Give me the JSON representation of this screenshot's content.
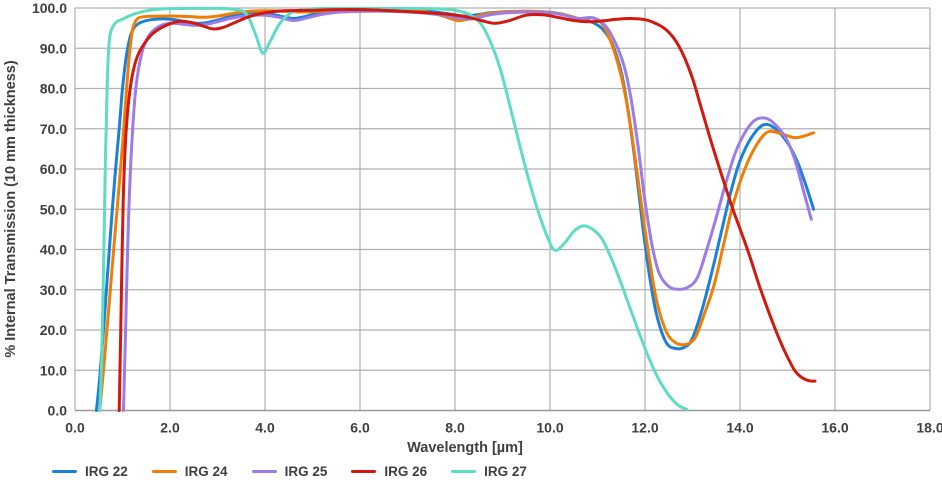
{
  "figure": {
    "background": "#ffffff",
    "text_color": "#3f3f40",
    "grid_color": "#b0b0b0",
    "axis_line_color": "#9a9a9a"
  },
  "chart_data": {
    "type": "line",
    "title": "",
    "xlabel": "Wavelength [µm]",
    "ylabel": "% Internal Transmission (10 mm thickness)",
    "xlim": [
      0,
      18
    ],
    "ylim": [
      0,
      100
    ],
    "x_ticks": [
      "0.0",
      "2.0",
      "4.0",
      "6.0",
      "8.0",
      "10.0",
      "12.0",
      "14.0",
      "16.0",
      "18.0"
    ],
    "y_ticks": [
      "0.0",
      "10.0",
      "20.0",
      "30.0",
      "40.0",
      "50.0",
      "60.0",
      "70.0",
      "80.0",
      "90.0",
      "100.0"
    ],
    "grid": true,
    "legend_position": "bottom-left",
    "line_width": 3,
    "draw_order": [
      "IRG 22",
      "IRG 24",
      "IRG 25",
      "IRG 27",
      "IRG 26"
    ],
    "series": [
      {
        "name": "IRG 22",
        "color": "#1a80d8",
        "points": [
          [
            0.45,
            0
          ],
          [
            0.52,
            8
          ],
          [
            0.6,
            20
          ],
          [
            0.68,
            33
          ],
          [
            0.76,
            46
          ],
          [
            0.84,
            58
          ],
          [
            0.93,
            70
          ],
          [
            1.0,
            80
          ],
          [
            1.08,
            88
          ],
          [
            1.16,
            92.8
          ],
          [
            1.25,
            95.2
          ],
          [
            1.38,
            96.4
          ],
          [
            1.6,
            97.1
          ],
          [
            1.85,
            97.3
          ],
          [
            2.1,
            97.1
          ],
          [
            2.35,
            96.5
          ],
          [
            2.55,
            96.2
          ],
          [
            2.75,
            96.3
          ],
          [
            3.0,
            97.0
          ],
          [
            3.3,
            98.0
          ],
          [
            3.6,
            98.6
          ],
          [
            3.9,
            98.7
          ],
          [
            4.15,
            98.4
          ],
          [
            4.4,
            97.8
          ],
          [
            4.6,
            97.4
          ],
          [
            4.85,
            97.9
          ],
          [
            5.1,
            98.7
          ],
          [
            5.4,
            99.3
          ],
          [
            5.8,
            99.7
          ],
          [
            6.3,
            99.8
          ],
          [
            6.8,
            99.7
          ],
          [
            7.3,
            99.3
          ],
          [
            7.7,
            98.8
          ],
          [
            8.0,
            98.3
          ],
          [
            8.2,
            98.0
          ],
          [
            8.45,
            98.3
          ],
          [
            8.75,
            98.8
          ],
          [
            9.1,
            99.1
          ],
          [
            9.5,
            99.1
          ],
          [
            9.9,
            99.0
          ],
          [
            10.2,
            98.6
          ],
          [
            10.5,
            97.7
          ],
          [
            10.7,
            97.1
          ],
          [
            10.9,
            96.4
          ],
          [
            11.1,
            94.8
          ],
          [
            11.3,
            91.3
          ],
          [
            11.5,
            84.0
          ],
          [
            11.65,
            74.0
          ],
          [
            11.8,
            61.0
          ],
          [
            11.95,
            46.0
          ],
          [
            12.1,
            33.0
          ],
          [
            12.25,
            23.5
          ],
          [
            12.45,
            16.8
          ],
          [
            12.65,
            15.4
          ],
          [
            12.85,
            15.8
          ],
          [
            13.0,
            18.0
          ],
          [
            13.2,
            25.0
          ],
          [
            13.4,
            34.0
          ],
          [
            13.6,
            44.0
          ],
          [
            13.8,
            54.0
          ],
          [
            14.0,
            62.0
          ],
          [
            14.25,
            68.0
          ],
          [
            14.5,
            71.0
          ],
          [
            14.75,
            70.0
          ],
          [
            15.0,
            66.5
          ],
          [
            15.2,
            62.0
          ],
          [
            15.4,
            55.5
          ],
          [
            15.55,
            50.0
          ]
        ]
      },
      {
        "name": "IRG 24",
        "color": "#f07d05",
        "points": [
          [
            0.52,
            0
          ],
          [
            0.6,
            10
          ],
          [
            0.7,
            24
          ],
          [
            0.8,
            38
          ],
          [
            0.9,
            52
          ],
          [
            1.0,
            66
          ],
          [
            1.08,
            79
          ],
          [
            1.15,
            89
          ],
          [
            1.22,
            95.0
          ],
          [
            1.32,
            97.4
          ],
          [
            1.5,
            97.9
          ],
          [
            1.8,
            98.0
          ],
          [
            2.1,
            98.0
          ],
          [
            2.4,
            97.9
          ],
          [
            2.7,
            97.7
          ],
          [
            3.0,
            98.0
          ],
          [
            3.3,
            98.6
          ],
          [
            3.6,
            99.1
          ],
          [
            4.0,
            99.3
          ],
          [
            4.4,
            99.2
          ],
          [
            4.8,
            99.0
          ],
          [
            5.2,
            99.2
          ],
          [
            5.7,
            99.5
          ],
          [
            6.3,
            99.6
          ],
          [
            6.9,
            99.4
          ],
          [
            7.4,
            99.0
          ],
          [
            7.75,
            98.0
          ],
          [
            8.05,
            96.9
          ],
          [
            8.3,
            97.3
          ],
          [
            8.6,
            98.4
          ],
          [
            9.0,
            99.0
          ],
          [
            9.4,
            99.2
          ],
          [
            9.8,
            99.1
          ],
          [
            10.2,
            98.6
          ],
          [
            10.45,
            97.9
          ],
          [
            10.65,
            97.3
          ],
          [
            10.9,
            97.5
          ],
          [
            11.1,
            96.0
          ],
          [
            11.3,
            91.0
          ],
          [
            11.5,
            83.0
          ],
          [
            11.65,
            74.0
          ],
          [
            11.8,
            62.0
          ],
          [
            11.95,
            49.0
          ],
          [
            12.1,
            37.0
          ],
          [
            12.25,
            27.0
          ],
          [
            12.45,
            19.5
          ],
          [
            12.65,
            16.8
          ],
          [
            12.85,
            16.4
          ],
          [
            13.05,
            18.0
          ],
          [
            13.25,
            24.0
          ],
          [
            13.45,
            31.0
          ],
          [
            13.65,
            41.0
          ],
          [
            13.85,
            51.0
          ],
          [
            14.1,
            60.0
          ],
          [
            14.35,
            66.0
          ],
          [
            14.6,
            69.3
          ],
          [
            14.9,
            68.6
          ],
          [
            15.15,
            67.8
          ],
          [
            15.35,
            68.2
          ],
          [
            15.55,
            69.0
          ]
        ]
      },
      {
        "name": "IRG 25",
        "color": "#9b7ce8",
        "points": [
          [
            1.02,
            0
          ],
          [
            1.07,
            22
          ],
          [
            1.12,
            45
          ],
          [
            1.19,
            65
          ],
          [
            1.28,
            80
          ],
          [
            1.4,
            88.5
          ],
          [
            1.55,
            93.0
          ],
          [
            1.75,
            95.3
          ],
          [
            2.0,
            96.2
          ],
          [
            2.25,
            96.0
          ],
          [
            2.5,
            95.7
          ],
          [
            2.75,
            95.9
          ],
          [
            3.0,
            96.6
          ],
          [
            3.3,
            97.5
          ],
          [
            3.65,
            98.1
          ],
          [
            4.0,
            98.2
          ],
          [
            4.3,
            97.7
          ],
          [
            4.6,
            96.9
          ],
          [
            4.9,
            97.6
          ],
          [
            5.2,
            98.4
          ],
          [
            5.6,
            99.0
          ],
          [
            6.2,
            99.2
          ],
          [
            6.8,
            99.1
          ],
          [
            7.4,
            98.7
          ],
          [
            7.8,
            98.1
          ],
          [
            8.1,
            97.5
          ],
          [
            8.35,
            97.3
          ],
          [
            8.7,
            98.2
          ],
          [
            9.1,
            98.8
          ],
          [
            9.6,
            99.0
          ],
          [
            10.0,
            98.8
          ],
          [
            10.3,
            98.2
          ],
          [
            10.6,
            97.4
          ],
          [
            10.9,
            97.6
          ],
          [
            11.15,
            95.8
          ],
          [
            11.35,
            92.0
          ],
          [
            11.55,
            86.0
          ],
          [
            11.7,
            78.0
          ],
          [
            11.85,
            66.0
          ],
          [
            12.0,
            52.0
          ],
          [
            12.15,
            41.0
          ],
          [
            12.3,
            34.0
          ],
          [
            12.5,
            30.8
          ],
          [
            12.7,
            30.1
          ],
          [
            12.9,
            30.6
          ],
          [
            13.1,
            33.0
          ],
          [
            13.3,
            40.0
          ],
          [
            13.5,
            48.0
          ],
          [
            13.7,
            56.5
          ],
          [
            13.9,
            64.0
          ],
          [
            14.1,
            69.0
          ],
          [
            14.3,
            72.0
          ],
          [
            14.5,
            72.7
          ],
          [
            14.7,
            71.5
          ],
          [
            14.95,
            68.0
          ],
          [
            15.15,
            62.5
          ],
          [
            15.35,
            54.0
          ],
          [
            15.5,
            47.5
          ]
        ]
      },
      {
        "name": "IRG 26",
        "color": "#d2190f",
        "points": [
          [
            0.93,
            0
          ],
          [
            0.97,
            25
          ],
          [
            1.01,
            50
          ],
          [
            1.06,
            66
          ],
          [
            1.13,
            77
          ],
          [
            1.22,
            84
          ],
          [
            1.33,
            88.5
          ],
          [
            1.48,
            91.5
          ],
          [
            1.65,
            93.8
          ],
          [
            1.9,
            95.6
          ],
          [
            2.2,
            96.7
          ],
          [
            2.45,
            96.4
          ],
          [
            2.7,
            95.5
          ],
          [
            2.9,
            94.8
          ],
          [
            3.1,
            95.1
          ],
          [
            3.35,
            96.3
          ],
          [
            3.65,
            97.8
          ],
          [
            4.0,
            98.8
          ],
          [
            4.4,
            99.3
          ],
          [
            4.9,
            99.4
          ],
          [
            5.5,
            99.6
          ],
          [
            6.1,
            99.6
          ],
          [
            6.7,
            99.3
          ],
          [
            7.3,
            98.9
          ],
          [
            7.8,
            98.5
          ],
          [
            8.2,
            97.9
          ],
          [
            8.55,
            96.9
          ],
          [
            8.85,
            96.2
          ],
          [
            9.15,
            96.9
          ],
          [
            9.5,
            98.2
          ],
          [
            9.85,
            98.3
          ],
          [
            10.2,
            97.6
          ],
          [
            10.5,
            96.9
          ],
          [
            10.8,
            96.6
          ],
          [
            11.1,
            96.8
          ],
          [
            11.4,
            97.2
          ],
          [
            11.7,
            97.4
          ],
          [
            12.0,
            97.1
          ],
          [
            12.2,
            96.3
          ],
          [
            12.4,
            95.0
          ],
          [
            12.6,
            92.6
          ],
          [
            12.8,
            88.5
          ],
          [
            13.0,
            82.5
          ],
          [
            13.2,
            74.5
          ],
          [
            13.4,
            66.5
          ],
          [
            13.6,
            59.0
          ],
          [
            13.85,
            50.0
          ],
          [
            14.05,
            43.5
          ],
          [
            14.2,
            38.5
          ],
          [
            14.45,
            29.5
          ],
          [
            14.75,
            20.0
          ],
          [
            14.95,
            14.5
          ],
          [
            15.15,
            10.0
          ],
          [
            15.3,
            8.2
          ],
          [
            15.45,
            7.4
          ],
          [
            15.58,
            7.3
          ]
        ]
      },
      {
        "name": "IRG 27",
        "color": "#5edcc4",
        "points": [
          [
            0.52,
            0
          ],
          [
            0.56,
            12
          ],
          [
            0.6,
            35
          ],
          [
            0.64,
            62
          ],
          [
            0.68,
            82
          ],
          [
            0.72,
            91.5
          ],
          [
            0.78,
            95.0
          ],
          [
            0.88,
            96.6
          ],
          [
            1.0,
            97.2
          ],
          [
            1.2,
            98.3
          ],
          [
            1.5,
            99.3
          ],
          [
            1.9,
            99.8
          ],
          [
            2.4,
            99.9
          ],
          [
            2.9,
            99.9
          ],
          [
            3.3,
            99.7
          ],
          [
            3.6,
            98.6
          ],
          [
            3.8,
            93.5
          ],
          [
            3.95,
            88.8
          ],
          [
            4.1,
            91.5
          ],
          [
            4.3,
            96.0
          ],
          [
            4.55,
            98.8
          ],
          [
            4.9,
            99.7
          ],
          [
            5.5,
            99.9
          ],
          [
            6.2,
            99.9
          ],
          [
            7.0,
            99.9
          ],
          [
            7.6,
            99.8
          ],
          [
            8.0,
            99.4
          ],
          [
            8.3,
            98.4
          ],
          [
            8.55,
            96.0
          ],
          [
            8.75,
            91.5
          ],
          [
            8.95,
            85.0
          ],
          [
            9.15,
            76.0
          ],
          [
            9.35,
            66.5
          ],
          [
            9.55,
            57.5
          ],
          [
            9.75,
            49.5
          ],
          [
            9.95,
            43.0
          ],
          [
            10.1,
            39.8
          ],
          [
            10.3,
            41.5
          ],
          [
            10.5,
            44.5
          ],
          [
            10.7,
            45.9
          ],
          [
            10.9,
            45.0
          ],
          [
            11.1,
            42.5
          ],
          [
            11.3,
            37.5
          ],
          [
            11.5,
            31.5
          ],
          [
            11.7,
            25.0
          ],
          [
            11.9,
            18.5
          ],
          [
            12.1,
            12.5
          ],
          [
            12.3,
            7.5
          ],
          [
            12.5,
            3.8
          ],
          [
            12.7,
            1.3
          ],
          [
            12.88,
            0.3
          ]
        ]
      }
    ]
  }
}
